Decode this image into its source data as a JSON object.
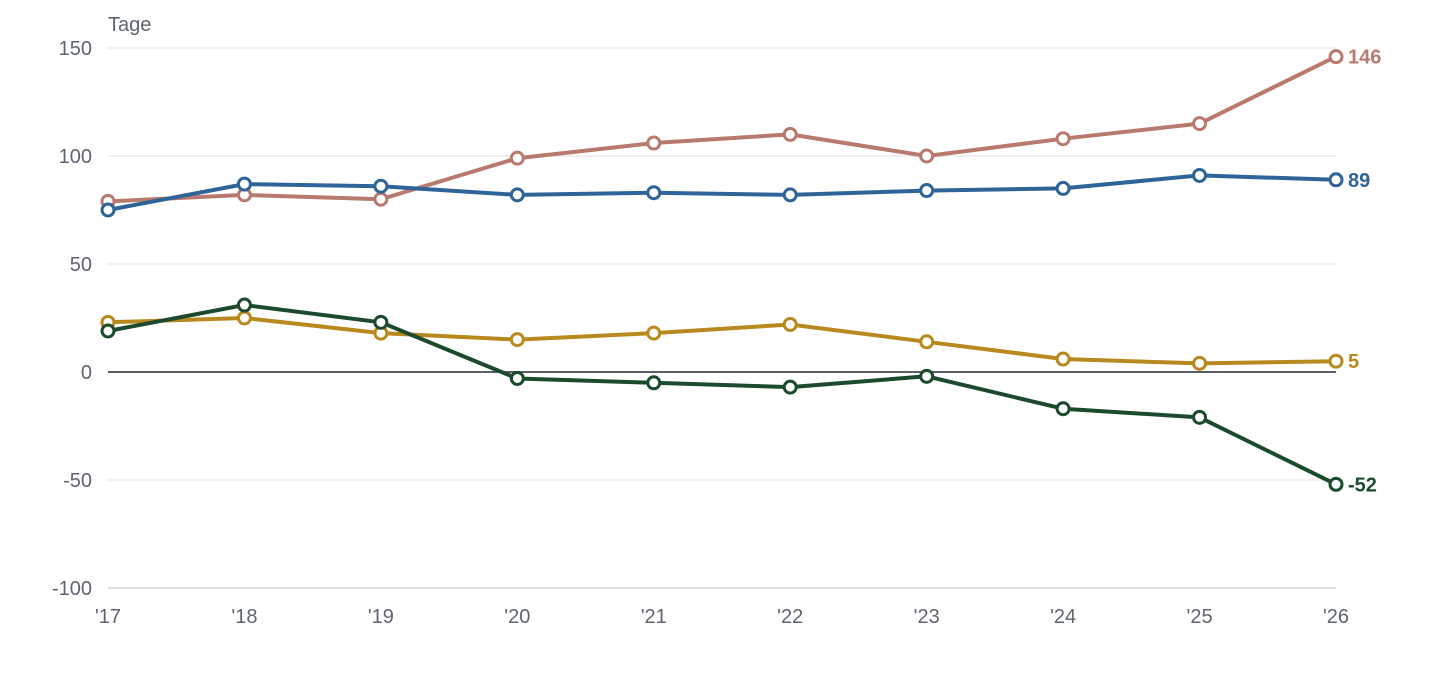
{
  "chart_data": {
    "type": "line",
    "ylabel": "Tage",
    "ylim": [
      -100,
      150
    ],
    "y_ticks": [
      150,
      100,
      50,
      0,
      -50,
      -100
    ],
    "categories": [
      "'17",
      "'18",
      "'19",
      "'20",
      "'21",
      "'22",
      "'23",
      "'24",
      "'25",
      "'26"
    ],
    "grid": true,
    "series": [
      {
        "color": "#b87a6e",
        "values": [
          79,
          82,
          80,
          99,
          106,
          110,
          100,
          108,
          115,
          146
        ],
        "end_label": "146"
      },
      {
        "color": "#2f6499",
        "values": [
          75,
          87,
          86,
          82,
          83,
          82,
          84,
          85,
          91,
          89
        ],
        "end_label": "89"
      },
      {
        "color": "#b8891e",
        "values": [
          23,
          25,
          18,
          15,
          18,
          22,
          14,
          6,
          4,
          5
        ],
        "end_label": "5"
      },
      {
        "color": "#1b4a2c",
        "values": [
          19,
          31,
          23,
          -3,
          -5,
          -7,
          -2,
          -17,
          -21,
          -52
        ],
        "end_label": "-52"
      }
    ]
  }
}
